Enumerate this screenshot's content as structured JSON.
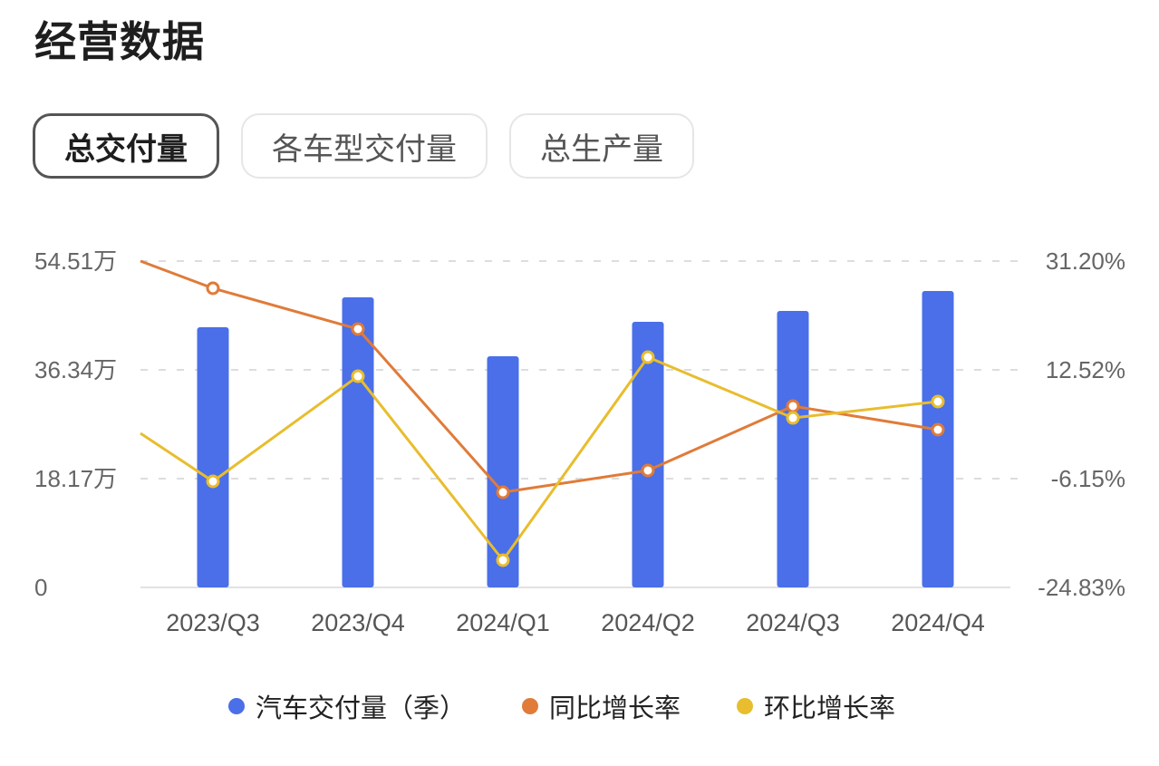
{
  "header": {
    "title": "经营数据"
  },
  "tabs": [
    {
      "label": "总交付量",
      "active": true
    },
    {
      "label": "各车型交付量",
      "active": false
    },
    {
      "label": "总生产量",
      "active": false
    }
  ],
  "colors": {
    "bar": "#4a6fe8",
    "yoy": "#e07b39",
    "qoq": "#e8bd2e",
    "grid": "#dddddd",
    "axis": "#e2e2e2"
  },
  "axes": {
    "left_ticks": [
      "0",
      "18.17万",
      "36.34万",
      "54.51万"
    ],
    "right_ticks": [
      "-24.83%",
      "-6.15%",
      "12.52%",
      "31.20%"
    ]
  },
  "legend": [
    {
      "label": "汽车交付量（季）",
      "color": "#4a6fe8"
    },
    {
      "label": "同比增长率",
      "color": "#e07b39"
    },
    {
      "label": "环比增长率",
      "color": "#e8bd2e"
    }
  ],
  "chart_data": {
    "type": "bar",
    "title": "经营数据 - 总交付量",
    "categories": [
      "2023/Q3",
      "2023/Q4",
      "2024/Q1",
      "2024/Q2",
      "2024/Q3",
      "2024/Q4"
    ],
    "series": [
      {
        "name": "汽车交付量（季）",
        "type": "bar",
        "axis": "left",
        "unit": "万",
        "values": [
          43.46,
          48.45,
          38.61,
          44.37,
          46.18,
          49.51
        ]
      },
      {
        "name": "同比增长率",
        "type": "line",
        "axis": "right",
        "unit": "%",
        "values": [
          26.53,
          19.53,
          -8.49,
          -4.75,
          6.3,
          2.25
        ]
      },
      {
        "name": "环比增长率",
        "type": "line",
        "axis": "right",
        "unit": "%",
        "values": [
          -6.62,
          11.43,
          -20.16,
          14.7,
          4.27,
          7.08
        ]
      }
    ],
    "ylim_left": [
      0,
      54.51
    ],
    "ylim_right": [
      -24.83,
      31.2
    ],
    "left_ticks": [
      0,
      18.17,
      36.34,
      54.51
    ],
    "right_ticks": [
      -24.83,
      -6.15,
      12.52,
      31.2
    ],
    "xlabel": "",
    "ylabel": "",
    "grid": true,
    "legend_position": "bottom"
  }
}
